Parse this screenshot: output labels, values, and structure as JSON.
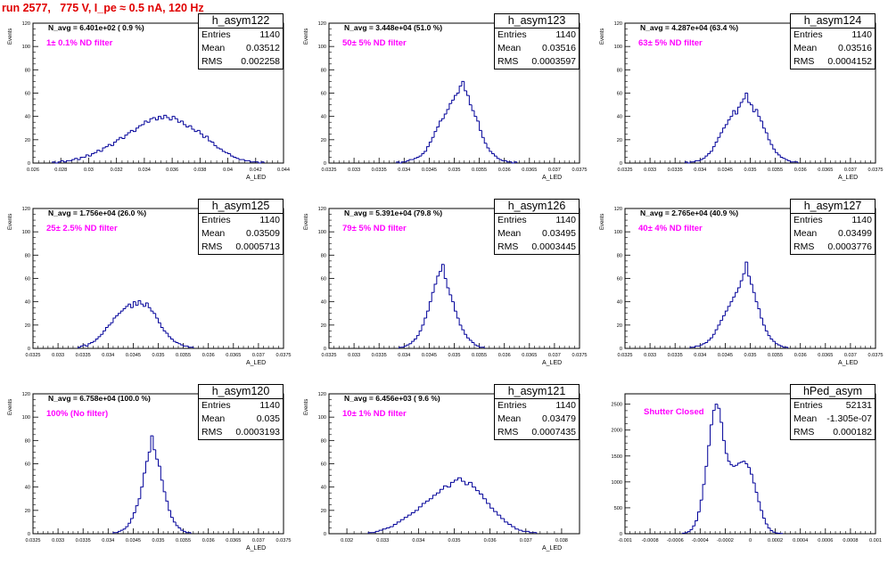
{
  "page_title": "run 2577,   775 V, I_pe ≈ 0.5 nA, 120 Hz",
  "colors": {
    "title": "#e00000",
    "filter_label": "#ff00ff",
    "histogram_line": "#000099"
  },
  "chart_data": [
    {
      "type": "bar",
      "name": "h_asym122",
      "title": "h_asym122",
      "navg_label": "N_avg = 6.401e+02 ( 0.9 %)",
      "filter_label": "1± 0.1% ND filter",
      "ylabel": "Events",
      "xlabel": "A_LED",
      "stats": [
        [
          "Entries",
          "1140"
        ],
        [
          "Mean",
          "0.03512"
        ],
        [
          "RMS",
          "0.002258"
        ]
      ],
      "xlim": [
        0.026,
        0.044
      ],
      "ylim": [
        0,
        120
      ],
      "xticks": [
        0.026,
        0.028,
        0.03,
        0.032,
        0.034,
        0.036,
        0.038,
        0.04,
        0.042,
        0.044
      ],
      "xtick_labels": [
        "0.026",
        "0.028",
        "0.03",
        "0.032",
        "0.034",
        "0.036",
        "0.038",
        "0.04",
        "0.042",
        "0.044"
      ],
      "yticks": [
        0,
        20,
        40,
        60,
        80,
        100,
        120
      ],
      "ytick_labels": [
        "0",
        "20",
        "40",
        "60",
        "80",
        "100",
        "120"
      ],
      "bin_start": 0.0274,
      "bin_width": 0.0002,
      "values": [
        1,
        0,
        1,
        2,
        1,
        2,
        2,
        3,
        4,
        3,
        5,
        5,
        7,
        6,
        8,
        9,
        11,
        10,
        13,
        14,
        16,
        15,
        18,
        20,
        22,
        21,
        24,
        26,
        28,
        27,
        30,
        32,
        33,
        36,
        35,
        38,
        39,
        37,
        40,
        38,
        41,
        39,
        37,
        40,
        38,
        35,
        36,
        33,
        31,
        32,
        29,
        27,
        28,
        25,
        22,
        23,
        19,
        18,
        15,
        13,
        12,
        10,
        9,
        8,
        6,
        5,
        4,
        3,
        3,
        2,
        2,
        1,
        1,
        1,
        0,
        1
      ]
    },
    {
      "type": "bar",
      "name": "h_asym123",
      "title": "h_asym123",
      "navg_label": "N_avg = 3.448e+04 (51.0 %)",
      "filter_label": "50± 5% ND filter",
      "ylabel": "Events",
      "xlabel": "A_LED",
      "stats": [
        [
          "Entries",
          "1140"
        ],
        [
          "Mean",
          "0.03516"
        ],
        [
          "RMS",
          "0.0003597"
        ]
      ],
      "xlim": [
        0.0325,
        0.0375
      ],
      "ylim": [
        0,
        120
      ],
      "xticks": [
        0.0325,
        0.033,
        0.0335,
        0.034,
        0.0345,
        0.035,
        0.0355,
        0.036,
        0.0365,
        0.037,
        0.0375
      ],
      "xtick_labels": [
        "0.0325",
        "0.033",
        "0.0335",
        "0.034",
        "0.0345",
        "0.035",
        "0.0355",
        "0.036",
        "0.0365",
        "0.037",
        "0.0375"
      ],
      "yticks": [
        0,
        20,
        40,
        60,
        80,
        100,
        120
      ],
      "ytick_labels": [
        "0",
        "20",
        "40",
        "60",
        "80",
        "100",
        "120"
      ],
      "bin_start": 0.03385,
      "bin_width": 5e-05,
      "values": [
        1,
        0,
        1,
        1,
        2,
        3,
        3,
        4,
        5,
        6,
        8,
        10,
        14,
        18,
        22,
        27,
        31,
        36,
        38,
        42,
        46,
        51,
        54,
        58,
        60,
        66,
        70,
        62,
        58,
        50,
        45,
        40,
        36,
        28,
        22,
        17,
        13,
        10,
        8,
        6,
        4,
        3,
        2,
        2,
        1,
        1,
        0,
        1
      ]
    },
    {
      "type": "bar",
      "name": "h_asym124",
      "title": "h_asym124",
      "navg_label": "N_avg = 4.287e+04 (63.4 %)",
      "filter_label": "63± 5% ND filter",
      "ylabel": "Events",
      "xlabel": "A_LED",
      "stats": [
        [
          "Entries",
          "1140"
        ],
        [
          "Mean",
          "0.03516"
        ],
        [
          "RMS",
          "0.0004152"
        ]
      ],
      "xlim": [
        0.0325,
        0.0375
      ],
      "ylim": [
        0,
        120
      ],
      "xticks": [
        0.0325,
        0.033,
        0.0335,
        0.034,
        0.0345,
        0.035,
        0.0355,
        0.036,
        0.0365,
        0.037,
        0.0375
      ],
      "xtick_labels": [
        "0.0325",
        "0.033",
        "0.0335",
        "0.034",
        "0.0345",
        "0.035",
        "0.0355",
        "0.036",
        "0.0365",
        "0.037",
        "0.0375"
      ],
      "yticks": [
        0,
        20,
        40,
        60,
        80,
        100,
        120
      ],
      "ytick_labels": [
        "0",
        "20",
        "40",
        "60",
        "80",
        "100",
        "120"
      ],
      "bin_start": 0.0337,
      "bin_width": 5e-05,
      "values": [
        1,
        0,
        1,
        1,
        2,
        2,
        3,
        4,
        6,
        8,
        10,
        14,
        18,
        22,
        26,
        30,
        33,
        37,
        40,
        45,
        42,
        48,
        52,
        55,
        60,
        52,
        50,
        44,
        46,
        40,
        36,
        30,
        26,
        20,
        16,
        12,
        9,
        7,
        5,
        4,
        3,
        2,
        1,
        1,
        1
      ]
    },
    {
      "type": "bar",
      "name": "h_asym125",
      "title": "h_asym125",
      "navg_label": "N_avg = 1.756e+04 (26.0 %)",
      "filter_label": "25± 2.5% ND filter",
      "ylabel": "Events",
      "xlabel": "A_LED",
      "stats": [
        [
          "Entries",
          "1140"
        ],
        [
          "Mean",
          "0.03509"
        ],
        [
          "RMS",
          "0.0005713"
        ]
      ],
      "xlim": [
        0.0325,
        0.0375
      ],
      "ylim": [
        0,
        120
      ],
      "xticks": [
        0.0325,
        0.033,
        0.0335,
        0.034,
        0.0345,
        0.035,
        0.0355,
        0.036,
        0.0365,
        0.037,
        0.0375
      ],
      "xtick_labels": [
        "0.0325",
        "0.033",
        "0.0335",
        "0.034",
        "0.0345",
        "0.035",
        "0.0355",
        "0.036",
        "0.0365",
        "0.037",
        "0.0375"
      ],
      "yticks": [
        0,
        20,
        40,
        60,
        80,
        100,
        120
      ],
      "ytick_labels": [
        "0",
        "20",
        "40",
        "60",
        "80",
        "100",
        "120"
      ],
      "bin_start": 0.0334,
      "bin_width": 5e-05,
      "values": [
        1,
        2,
        3,
        2,
        4,
        5,
        6,
        8,
        10,
        12,
        15,
        18,
        20,
        22,
        26,
        28,
        30,
        32,
        34,
        36,
        38,
        35,
        40,
        37,
        41,
        38,
        36,
        39,
        35,
        32,
        30,
        26,
        22,
        18,
        15,
        13,
        10,
        8,
        6,
        5,
        4,
        3,
        2,
        2,
        1,
        1
      ]
    },
    {
      "type": "bar",
      "name": "h_asym126",
      "title": "h_asym126",
      "navg_label": "N_avg = 5.391e+04 (79.8 %)",
      "filter_label": "79± 5% ND filter",
      "ylabel": "Events",
      "xlabel": "A_LED",
      "stats": [
        [
          "Entries",
          "1140"
        ],
        [
          "Mean",
          "0.03495"
        ],
        [
          "RMS",
          "0.0003445"
        ]
      ],
      "xlim": [
        0.0325,
        0.0375
      ],
      "ylim": [
        0,
        120
      ],
      "xticks": [
        0.0325,
        0.033,
        0.0335,
        0.034,
        0.0345,
        0.035,
        0.0355,
        0.036,
        0.0365,
        0.037,
        0.0375
      ],
      "xtick_labels": [
        "0.0325",
        "0.033",
        "0.0335",
        "0.034",
        "0.0345",
        "0.035",
        "0.0355",
        "0.036",
        "0.0365",
        "0.037",
        "0.0375"
      ],
      "yticks": [
        0,
        20,
        40,
        60,
        80,
        100,
        120
      ],
      "ytick_labels": [
        "0",
        "20",
        "40",
        "60",
        "80",
        "100",
        "120"
      ],
      "bin_start": 0.0339,
      "bin_width": 5e-05,
      "values": [
        1,
        1,
        2,
        3,
        4,
        6,
        8,
        11,
        15,
        20,
        26,
        32,
        40,
        48,
        55,
        62,
        66,
        72,
        60,
        52,
        46,
        40,
        32,
        26,
        20,
        16,
        12,
        9,
        7,
        5,
        3,
        2,
        1,
        1
      ]
    },
    {
      "type": "bar",
      "name": "h_asym127",
      "title": "h_asym127",
      "navg_label": "N_avg = 2.765e+04 (40.9 %)",
      "filter_label": "40± 4% ND filter",
      "ylabel": "Events",
      "xlabel": "A_LED",
      "stats": [
        [
          "Entries",
          "1140"
        ],
        [
          "Mean",
          "0.03499"
        ],
        [
          "RMS",
          "0.0003776"
        ]
      ],
      "xlim": [
        0.0325,
        0.0375
      ],
      "ylim": [
        0,
        120
      ],
      "xticks": [
        0.0325,
        0.033,
        0.0335,
        0.034,
        0.0345,
        0.035,
        0.0355,
        0.036,
        0.0365,
        0.037,
        0.0375
      ],
      "xtick_labels": [
        "0.0325",
        "0.033",
        "0.0335",
        "0.034",
        "0.0345",
        "0.035",
        "0.0355",
        "0.036",
        "0.0365",
        "0.037",
        "0.0375"
      ],
      "yticks": [
        0,
        20,
        40,
        60,
        80,
        100,
        120
      ],
      "ytick_labels": [
        "0",
        "20",
        "40",
        "60",
        "80",
        "100",
        "120"
      ],
      "bin_start": 0.0338,
      "bin_width": 5e-05,
      "values": [
        1,
        1,
        2,
        2,
        3,
        4,
        5,
        7,
        9,
        12,
        16,
        20,
        24,
        28,
        32,
        36,
        40,
        44,
        48,
        52,
        58,
        64,
        74,
        62,
        55,
        48,
        40,
        34,
        26,
        20,
        15,
        11,
        8,
        6,
        4,
        3,
        2,
        1,
        1
      ]
    },
    {
      "type": "bar",
      "name": "h_asym120",
      "title": "h_asym120",
      "navg_label": "N_avg = 6.758e+04 (100.0 %)",
      "filter_label": "100% (No filter)",
      "ylabel": "Events",
      "xlabel": "A_LED",
      "stats": [
        [
          "Entries",
          "1140"
        ],
        [
          "Mean",
          "0.035"
        ],
        [
          "RMS",
          "0.0003193"
        ]
      ],
      "xlim": [
        0.0325,
        0.0375
      ],
      "ylim": [
        0,
        120
      ],
      "xticks": [
        0.0325,
        0.033,
        0.0335,
        0.034,
        0.0345,
        0.035,
        0.0355,
        0.036,
        0.0365,
        0.037,
        0.0375
      ],
      "xtick_labels": [
        "0.0325",
        "0.033",
        "0.0335",
        "0.034",
        "0.0345",
        "0.035",
        "0.0355",
        "0.036",
        "0.0365",
        "0.037",
        "0.0375"
      ],
      "yticks": [
        0,
        20,
        40,
        60,
        80,
        100,
        120
      ],
      "ytick_labels": [
        "0",
        "20",
        "40",
        "60",
        "80",
        "100",
        "120"
      ],
      "bin_start": 0.0341,
      "bin_width": 5e-05,
      "values": [
        1,
        1,
        2,
        3,
        4,
        6,
        9,
        13,
        18,
        24,
        30,
        40,
        52,
        62,
        70,
        84,
        72,
        64,
        58,
        46,
        36,
        28,
        20,
        14,
        10,
        7,
        5,
        3,
        2,
        1,
        1
      ]
    },
    {
      "type": "bar",
      "name": "h_asym121",
      "title": "h_asym121",
      "navg_label": "N_avg = 6.456e+03 ( 9.6 %)",
      "filter_label": "10± 1% ND filter",
      "ylabel": "Events",
      "xlabel": "A_LED",
      "stats": [
        [
          "Entries",
          "1140"
        ],
        [
          "Mean",
          "0.03479"
        ],
        [
          "RMS",
          "0.0007435"
        ]
      ],
      "xlim": [
        0.0315,
        0.0385
      ],
      "ylim": [
        0,
        120
      ],
      "xticks": [
        0.032,
        0.033,
        0.034,
        0.035,
        0.036,
        0.037,
        0.038
      ],
      "xtick_labels": [
        "0.032",
        "0.033",
        "0.034",
        "0.035",
        "0.036",
        "0.037",
        "0.038"
      ],
      "yticks": [
        0,
        20,
        40,
        60,
        80,
        100,
        120
      ],
      "ytick_labels": [
        "0",
        "20",
        "40",
        "60",
        "80",
        "100",
        "120"
      ],
      "bin_start": 0.0326,
      "bin_width": 0.0001,
      "values": [
        1,
        1,
        2,
        3,
        4,
        5,
        6,
        8,
        10,
        12,
        14,
        16,
        18,
        20,
        23,
        26,
        28,
        30,
        33,
        35,
        38,
        41,
        40,
        44,
        46,
        48,
        45,
        42,
        44,
        40,
        37,
        34,
        30,
        26,
        22,
        19,
        16,
        13,
        10,
        8,
        6,
        4,
        3,
        2,
        2,
        1,
        1
      ]
    },
    {
      "type": "bar",
      "name": "hPed_asym",
      "title": "hPed_asym",
      "navg_label": "",
      "filter_label": "Shutter Closed",
      "ylabel": "",
      "xlabel": "",
      "stats": [
        [
          "Entries",
          "52131"
        ],
        [
          "Mean",
          "-1.305e-07"
        ],
        [
          "RMS",
          "0.000182"
        ]
      ],
      "xlim": [
        -0.001,
        0.001
      ],
      "ylim": [
        0,
        2700
      ],
      "xticks": [
        -0.001,
        -0.0008,
        -0.0006,
        -0.0004,
        -0.0002,
        0,
        0.0002,
        0.0004,
        0.0006,
        0.0008,
        0.001
      ],
      "xtick_labels": [
        "-0.001",
        "-0.0008",
        "-0.0006",
        "-0.0004",
        "-0.0002",
        "0",
        "0.0002",
        "0.0004",
        "0.0006",
        "0.0008",
        "0.001"
      ],
      "yticks": [
        0,
        500,
        1000,
        1500,
        2000,
        2500
      ],
      "ytick_labels": [
        "0",
        "500",
        "1000",
        "1500",
        "2000",
        "2500"
      ],
      "bin_start": -0.00054,
      "bin_width": 2e-05,
      "values": [
        10,
        20,
        40,
        80,
        150,
        250,
        420,
        650,
        950,
        1300,
        1700,
        2100,
        2380,
        2500,
        2420,
        2150,
        1800,
        1550,
        1400,
        1330,
        1300,
        1320,
        1360,
        1380,
        1400,
        1350,
        1280,
        1150,
        980,
        800,
        620,
        450,
        300,
        190,
        110,
        60,
        30,
        15,
        8,
        4
      ]
    }
  ]
}
